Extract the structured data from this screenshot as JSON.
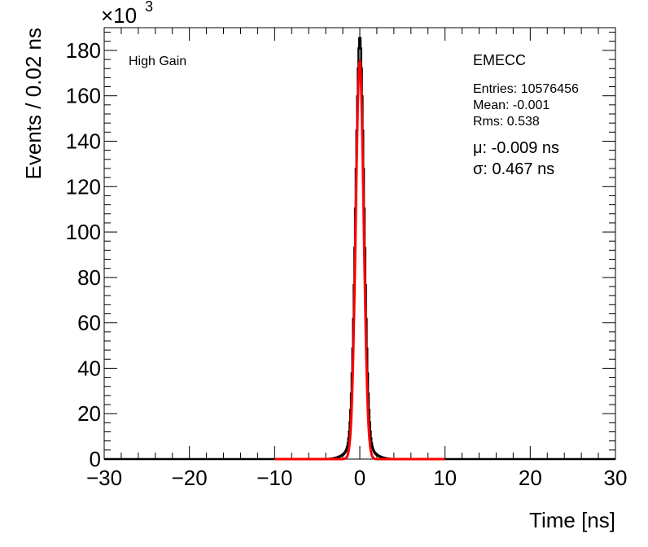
{
  "chart_data": {
    "type": "histogram",
    "xlabel": "Time [ns]",
    "ylabel": "Events / 0.02 ns",
    "xlim": [
      -30,
      30
    ],
    "ylim": [
      0,
      190
    ],
    "y_scale_label": "×10",
    "y_scale_exponent": "3",
    "x_ticks": [
      -30,
      -20,
      -10,
      0,
      10,
      20,
      30
    ],
    "x_tick_labels": [
      "−30",
      "−20",
      "−10",
      "0",
      "10",
      "20",
      "30"
    ],
    "y_ticks": [
      0,
      20,
      40,
      60,
      80,
      100,
      120,
      140,
      160,
      180
    ],
    "y_tick_labels": [
      "0",
      "20",
      "40",
      "60",
      "80",
      "100",
      "120",
      "140",
      "160",
      "180"
    ],
    "gain_label": "High Gain",
    "stats": {
      "title": "EMECC",
      "entries": "Entries: 10576456",
      "mean": "Mean: -0.001",
      "rms": "Rms: 0.538"
    },
    "fit": {
      "mu_text": "μ: -0.009 ns",
      "sigma_text": "σ: 0.467 ns",
      "mu": -0.009,
      "sigma": 0.467,
      "peak": 175,
      "range": [
        -10,
        10
      ],
      "color": "#ff0000"
    },
    "histogram": {
      "peak": 180,
      "center": 0.0,
      "sigma": 0.5,
      "color": "#000000"
    }
  }
}
